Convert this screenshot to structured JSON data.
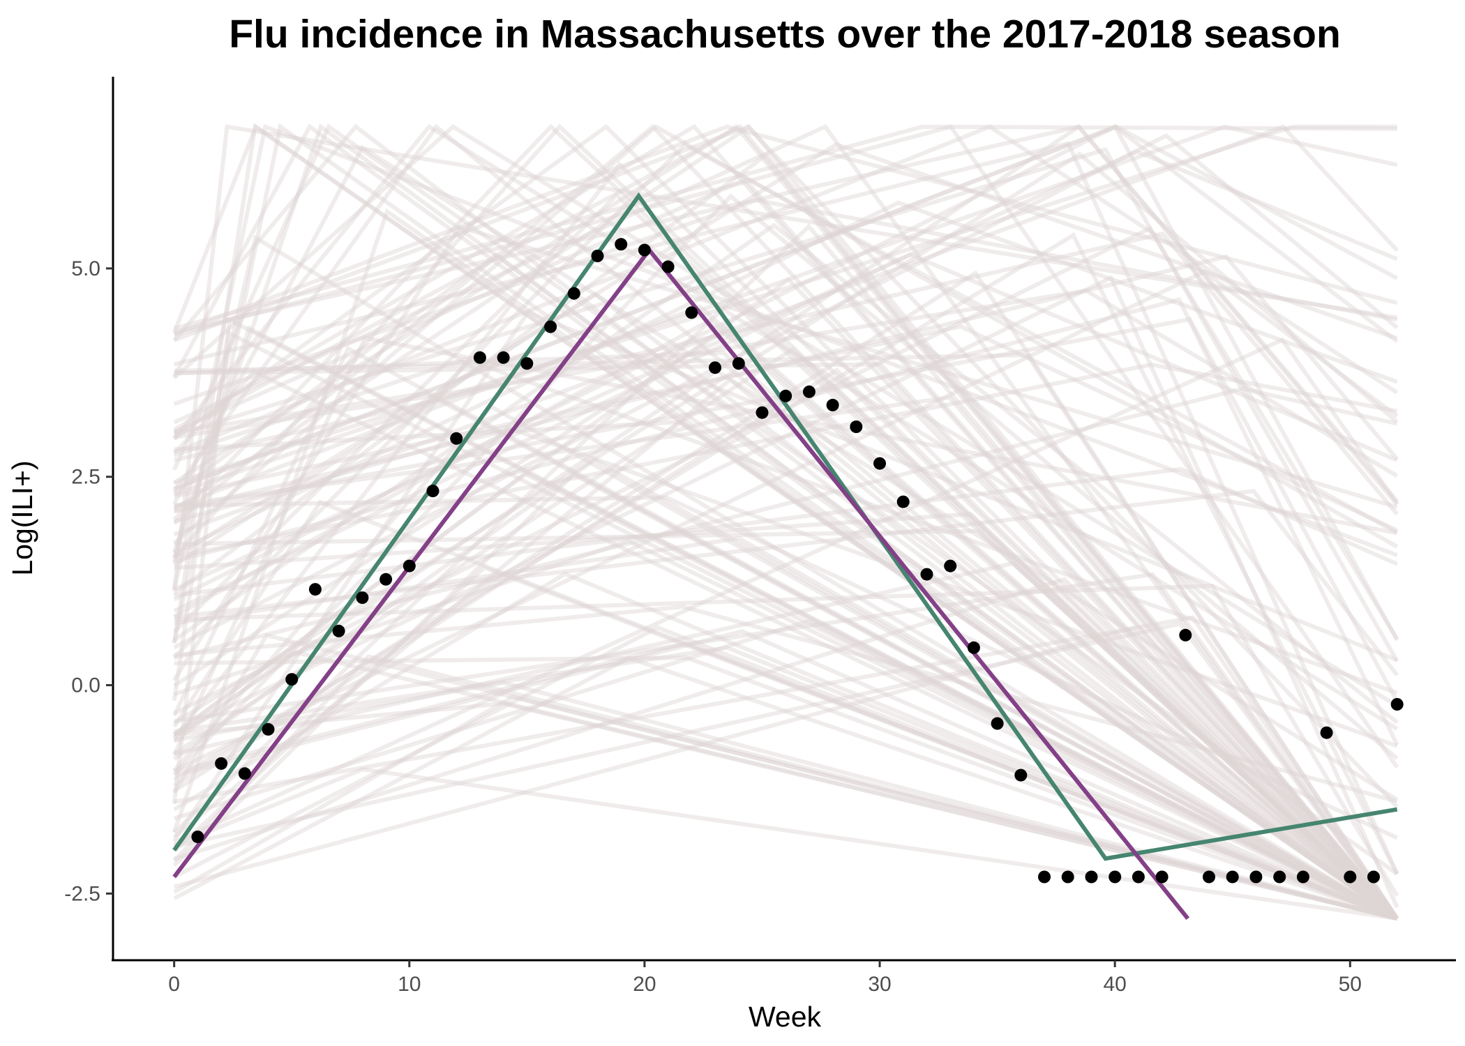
{
  "chart_data": {
    "type": "line",
    "title": "Flu incidence in Massachusetts over the 2017-2018 season",
    "xlabel": "Week",
    "ylabel": "Log(ILI+)",
    "xlim": [
      -2.6,
      54.5
    ],
    "ylim": [
      -3.3,
      7.3
    ],
    "xticks": [
      0,
      10,
      20,
      30,
      40,
      50
    ],
    "xtick_labels": [
      "0",
      "10",
      "20",
      "30",
      "40",
      "50"
    ],
    "yticks": [
      -2.5,
      0.0,
      2.5,
      5.0
    ],
    "ytick_labels": [
      "-2.5",
      "0.0",
      "2.5",
      "5.0"
    ],
    "grid": false,
    "legend": "none",
    "colors": {
      "observed": "#000000",
      "green_fit": "#468570",
      "purple_fit": "#834087",
      "samples": "#ddd5d5"
    },
    "series": [
      {
        "kind": "points",
        "x": [
          1,
          2,
          3,
          4,
          5,
          6,
          7,
          8,
          9,
          10,
          11,
          12,
          13,
          14,
          15,
          16,
          17,
          18,
          19,
          20,
          21,
          22,
          23,
          24,
          25,
          26,
          27,
          28,
          29,
          30,
          31,
          32,
          33,
          34,
          35,
          36,
          37,
          38,
          39,
          40,
          41,
          42,
          43,
          44,
          45,
          46,
          47,
          48,
          49,
          50,
          51,
          52
        ],
        "y": [
          -1.82,
          -0.94,
          -1.06,
          -0.53,
          0.07,
          1.15,
          0.65,
          1.05,
          1.27,
          1.43,
          2.33,
          2.96,
          3.93,
          3.93,
          3.86,
          4.3,
          4.7,
          5.15,
          5.29,
          5.22,
          5.02,
          4.47,
          3.81,
          3.86,
          3.27,
          3.47,
          3.52,
          3.36,
          3.1,
          2.66,
          2.2,
          1.33,
          1.43,
          0.45,
          -0.46,
          -1.08,
          -2.3,
          -2.3,
          -2.3,
          -2.3,
          -2.3,
          -2.3,
          0.6,
          -2.3,
          -2.3,
          -2.3,
          -2.3,
          -2.3,
          -0.57,
          -2.3,
          -2.3,
          -0.23
        ]
      },
      {
        "kind": "line",
        "x": [
          0,
          19.75,
          39.6,
          52
        ],
        "y": [
          -1.98,
          5.87,
          -2.08,
          -1.49
        ]
      },
      {
        "kind": "line",
        "x": [
          0,
          20.2,
          43.1
        ],
        "y": [
          -2.3,
          5.22,
          -2.8
        ]
      }
    ]
  }
}
